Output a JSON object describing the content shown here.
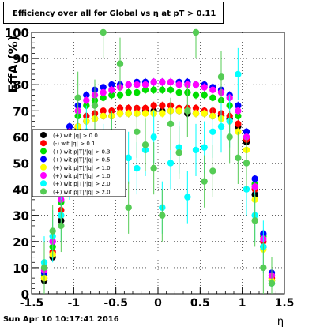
{
  "chart_data": {
    "type": "scatter",
    "title": "Efficiency over all for Global vs   η at pT > 0.11",
    "ylabel": "EffA (%)",
    "xlabel": "η",
    "xlim": [
      -1.5,
      1.5
    ],
    "ylim": [
      0,
      100
    ],
    "x_ticks": [
      -1.5,
      -1,
      -0.5,
      0,
      0.5,
      1,
      1.5
    ],
    "y_ticks": [
      0,
      10,
      20,
      30,
      40,
      50,
      60,
      70,
      80,
      90,
      100
    ],
    "grid": true,
    "legend_position": "left-middle",
    "series": [
      {
        "name": "(+) wit |q| > 0.0",
        "color": "#000000",
        "x": [
          -1.35,
          -1.25,
          -1.15,
          -1.05,
          -0.95,
          -0.85,
          -0.75,
          -0.65,
          -0.55,
          -0.45,
          -0.35,
          -0.25,
          -0.15,
          -0.05,
          0.05,
          0.15,
          0.25,
          0.35,
          0.45,
          0.55,
          0.65,
          0.75,
          0.85,
          0.95,
          1.05,
          1.15,
          1.25,
          1.35
        ],
        "y": [
          5,
          14,
          28,
          58,
          63,
          66,
          67,
          68,
          68,
          69,
          69,
          69,
          70,
          70,
          70,
          70,
          70,
          69,
          69,
          69,
          68,
          68,
          67,
          64,
          58,
          38,
          18,
          5
        ]
      },
      {
        "name": "(-) wit |q| > 0.1",
        "color": "#ff0000",
        "x": [
          -1.35,
          -1.25,
          -1.15,
          -1.05,
          -0.95,
          -0.85,
          -0.75,
          -0.65,
          -0.55,
          -0.45,
          -0.35,
          -0.25,
          -0.15,
          -0.05,
          0.05,
          0.15,
          0.25,
          0.35,
          0.45,
          0.55,
          0.65,
          0.75,
          0.85,
          0.95,
          1.05,
          1.15,
          1.25,
          1.35
        ],
        "y": [
          6,
          16,
          32,
          60,
          64,
          68,
          69,
          70,
          70,
          71,
          71,
          71,
          71,
          72,
          72,
          72,
          71,
          71,
          71,
          70,
          70,
          69,
          68,
          65,
          59,
          40,
          20,
          6
        ]
      },
      {
        "name": "(+) wit p|T|/|q| > 0.3",
        "color": "#00dd00",
        "x": [
          -1.35,
          -1.25,
          -1.15,
          -1.05,
          -0.95,
          -0.85,
          -0.75,
          -0.65,
          -0.55,
          -0.45,
          -0.35,
          -0.25,
          -0.15,
          -0.05,
          0.05,
          0.15,
          0.25,
          0.35,
          0.45,
          0.55,
          0.65,
          0.75,
          0.85,
          0.95,
          1.05,
          1.15,
          1.25,
          1.35
        ],
        "y": [
          7,
          18,
          35,
          62,
          68,
          72,
          74,
          75,
          76,
          76,
          77,
          77,
          78,
          78,
          78,
          78,
          77,
          77,
          76,
          76,
          75,
          74,
          72,
          68,
          60,
          42,
          22,
          7
        ]
      },
      {
        "name": "(+) wit p|T|/|q| > 0.5",
        "color": "#0000ff",
        "x": [
          -1.35,
          -1.25,
          -1.15,
          -1.05,
          -0.95,
          -0.85,
          -0.75,
          -0.65,
          -0.55,
          -0.45,
          -0.35,
          -0.25,
          -0.15,
          -0.05,
          0.05,
          0.15,
          0.25,
          0.35,
          0.45,
          0.55,
          0.65,
          0.75,
          0.85,
          0.95,
          1.05,
          1.15,
          1.25,
          1.35
        ],
        "y": [
          8,
          20,
          38,
          64,
          72,
          76,
          78,
          79,
          80,
          80,
          80,
          81,
          81,
          81,
          81,
          81,
          81,
          81,
          80,
          80,
          79,
          78,
          76,
          72,
          62,
          44,
          23,
          8
        ]
      },
      {
        "name": "(+) wit p|T|/|q| > 1.0",
        "color": "#ffff00",
        "x": [
          -1.35,
          -1.25,
          -1.15,
          -1.05,
          -0.95,
          -0.85,
          -0.75,
          -0.65,
          -0.55,
          -0.45,
          -0.35,
          -0.25,
          -0.15,
          -0.05,
          0.05,
          0.15,
          0.25,
          0.35,
          0.45,
          0.55,
          0.65,
          0.75,
          0.85,
          0.95,
          1.05,
          1.15,
          1.25,
          1.35
        ],
        "y": [
          6,
          15,
          30,
          58,
          64,
          66,
          67,
          68,
          68,
          69,
          69,
          69,
          69,
          69,
          69,
          70,
          70,
          70,
          69,
          69,
          68,
          67,
          66,
          62,
          55,
          36,
          17,
          5
        ]
      },
      {
        "name": "(+) wit p|T|/|q| > 1.0",
        "color": "#ff00ff",
        "x": [
          -1.35,
          -1.25,
          -1.15,
          -1.05,
          -0.95,
          -0.85,
          -0.75,
          -0.65,
          -0.55,
          -0.45,
          -0.35,
          -0.25,
          -0.15,
          -0.05,
          0.05,
          0.15,
          0.25,
          0.35,
          0.45,
          0.55,
          0.65,
          0.75,
          0.85,
          0.95,
          1.05,
          1.15,
          1.25,
          1.35
        ],
        "y": [
          9,
          20,
          36,
          62,
          70,
          74,
          76,
          77,
          78,
          79,
          80,
          80,
          80,
          81,
          81,
          81,
          80,
          80,
          80,
          79,
          78,
          77,
          75,
          70,
          60,
          41,
          21,
          7
        ]
      },
      {
        "name": "(+) wit p|T|/|q| > 2.0",
        "color": "#00ffff",
        "x": [
          -1.35,
          -1.25,
          -1.15,
          -1.05,
          -0.95,
          -0.85,
          -0.75,
          -0.65,
          -0.55,
          -0.45,
          -0.35,
          -0.25,
          -0.15,
          -0.05,
          0.05,
          0.15,
          0.25,
          0.35,
          0.45,
          0.55,
          0.65,
          0.75,
          0.85,
          0.95,
          1.05,
          1.15,
          1.25,
          1.35
        ],
        "y": [
          12,
          22,
          30,
          46,
          60,
          62,
          58,
          55,
          60,
          50,
          52,
          48,
          55,
          60,
          33,
          50,
          56,
          37,
          55,
          56,
          62,
          64,
          66,
          84,
          40,
          30,
          18,
          4
        ]
      },
      {
        "name": "(+) wit p|T|/|q| > 2.0",
        "color": "#55cc55",
        "x": [
          -1.35,
          -1.25,
          -1.15,
          -1.05,
          -0.95,
          -0.85,
          -0.75,
          -0.65,
          -0.55,
          -0.45,
          -0.35,
          -0.25,
          -0.15,
          -0.05,
          0.05,
          0.15,
          0.25,
          0.35,
          0.45,
          0.55,
          0.65,
          0.75,
          0.85,
          0.95,
          1.05,
          1.15,
          1.25,
          1.35
        ],
        "y": [
          10,
          24,
          26,
          50,
          75,
          52,
          72,
          100,
          60,
          88,
          33,
          62,
          57,
          48,
          30,
          65,
          54,
          70,
          100,
          43,
          47,
          83,
          60,
          52,
          50,
          28,
          10,
          4
        ]
      }
    ]
  },
  "footer": "Sun Apr 10 10:17:41 2016"
}
